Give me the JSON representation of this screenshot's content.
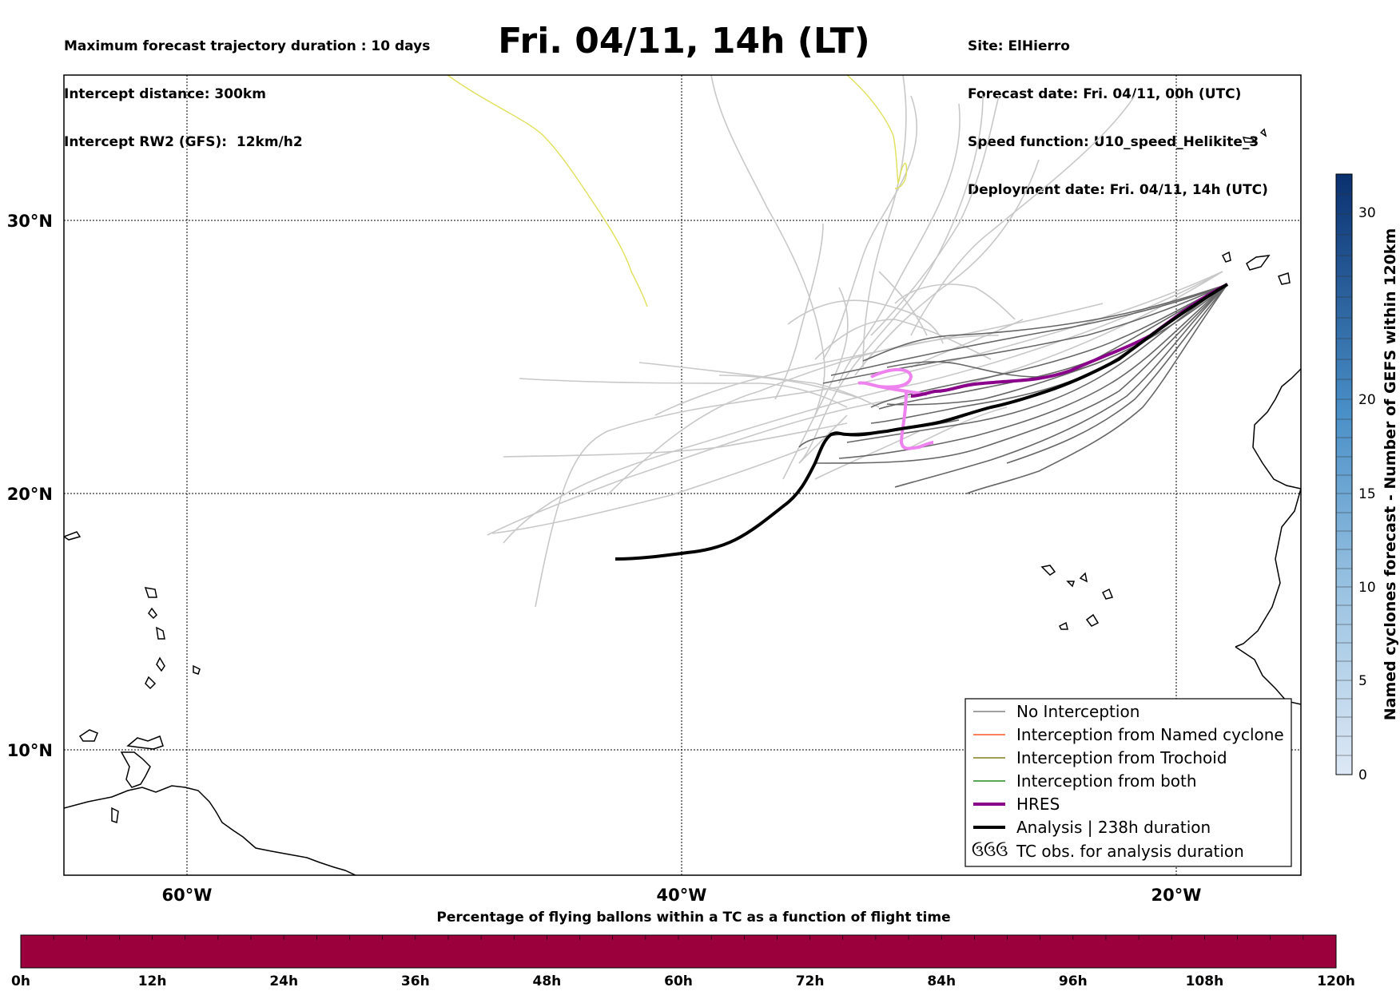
{
  "header": {
    "left_lines": [
      "Maximum forecast trajectory duration : 10 days",
      "Intercept distance: 300km",
      "Intercept RW2 (GFS):  12km/h2"
    ],
    "title": "Fri. 04/11, 14h (LT)",
    "right_lines": [
      "Site: ElHierro",
      "Forecast date: Fri. 04/11, 00h (UTC)",
      "Speed function: U10_speed_Helikite_3",
      "Deployment date: Fri. 04/11, 14h (UTC)"
    ]
  },
  "map": {
    "lon_ticks": [
      "60°W",
      "40°W",
      "20°W"
    ],
    "lat_ticks": [
      "30°N",
      "20°N",
      "10°N"
    ],
    "colors": {
      "no_interception": "#808080",
      "named_cyclone": "#ff5a1e",
      "trochoid": "#808020",
      "both": "#228b22",
      "hres": "#8b008b",
      "analysis": "#000000",
      "hres_loop": "#ee82ee",
      "faint_tracks": "#c8c8c8",
      "yellow_track": "#e0e05a"
    }
  },
  "legend": {
    "items": [
      {
        "label": "No Interception",
        "style": "thin-gray"
      },
      {
        "label": "Interception from Named cyclone",
        "style": "thin-orange"
      },
      {
        "label": "Interception from Trochoid",
        "style": "thin-olive"
      },
      {
        "label": "Interception from both",
        "style": "thin-green"
      },
      {
        "label": "HRES",
        "style": "thick-purple"
      },
      {
        "label": "Analysis | 238h duration",
        "style": "thick-black"
      },
      {
        "label": "TC obs. for analysis duration",
        "style": "cyclone-symbols"
      }
    ],
    "cyclone_symbol": "ઉઉઉ"
  },
  "colorbar": {
    "label": "Named cyclones forecast - Number of GEFS within 120km",
    "ticks": [
      "0",
      "5",
      "10",
      "15",
      "20",
      "30"
    ]
  },
  "bottom_bar": {
    "title": "Percentage of flying ballons within a TC as a function of flight time",
    "ticks": [
      "0h",
      "12h",
      "24h",
      "36h",
      "48h",
      "60h",
      "72h",
      "84h",
      "96h",
      "108h",
      "120h"
    ],
    "fill_color": "#9b003c"
  }
}
